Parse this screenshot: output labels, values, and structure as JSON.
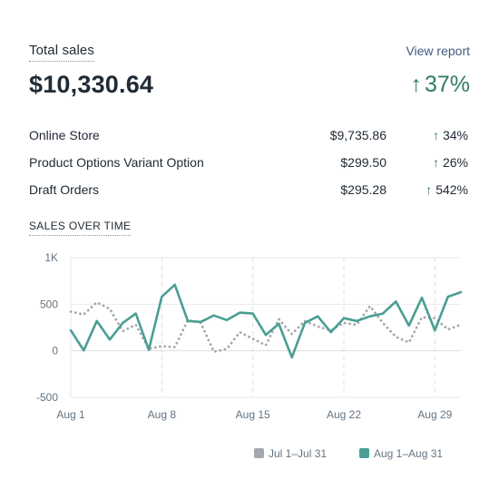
{
  "header": {
    "title": "Total sales",
    "view_report": "View report"
  },
  "total": {
    "value": "$10,330.64",
    "change": "37%",
    "change_arrow": "↑"
  },
  "breakdown": [
    {
      "label": "Online Store",
      "value": "$9,735.86",
      "arrow": "↑",
      "change": "34%"
    },
    {
      "label": "Product Options Variant Option",
      "value": "$299.50",
      "arrow": "↑",
      "change": "26%"
    },
    {
      "label": "Draft Orders",
      "value": "$295.28",
      "arrow": "↑",
      "change": "542%"
    }
  ],
  "chart_section": {
    "title": "SALES OVER TIME"
  },
  "colors": {
    "current_series": "#4a9e94",
    "previous_series": "#a5a9ad",
    "positive": "#2f7d62",
    "link": "#3d5a80"
  },
  "chart_data": {
    "type": "line",
    "x": [
      1,
      2,
      3,
      4,
      5,
      6,
      7,
      8,
      9,
      10,
      11,
      12,
      13,
      14,
      15,
      16,
      17,
      18,
      19,
      20,
      21,
      22,
      23,
      24,
      25,
      26,
      27,
      28,
      29,
      30,
      31
    ],
    "x_tick_labels": [
      "Aug 1",
      "Aug 8",
      "Aug 15",
      "Aug 22",
      "Aug 29"
    ],
    "x_tick_days": [
      1,
      8,
      15,
      22,
      29
    ],
    "y_tick_labels": [
      "1K",
      "500",
      "0",
      "-500"
    ],
    "y_tick_values": [
      1000,
      500,
      0,
      -500
    ],
    "ylim": [
      -500,
      1000
    ],
    "xlim": [
      1,
      31
    ],
    "grid": true,
    "legend_position": "bottom-center",
    "series": [
      {
        "name": "Jul 1–Jul 31",
        "style": "dotted",
        "color": "#a5a9ad",
        "values": [
          420,
          390,
          520,
          450,
          210,
          280,
          20,
          50,
          40,
          330,
          300,
          -10,
          20,
          200,
          130,
          60,
          340,
          180,
          320,
          260,
          220,
          300,
          280,
          480,
          300,
          150,
          90,
          360,
          350,
          230,
          280
        ]
      },
      {
        "name": "Aug 1–Aug 31",
        "style": "solid",
        "color": "#4a9e94",
        "values": [
          220,
          5,
          320,
          120,
          300,
          400,
          10,
          580,
          710,
          320,
          310,
          380,
          330,
          410,
          400,
          170,
          290,
          -70,
          300,
          370,
          200,
          350,
          320,
          370,
          400,
          530,
          270,
          570,
          220,
          580,
          630
        ]
      }
    ]
  }
}
